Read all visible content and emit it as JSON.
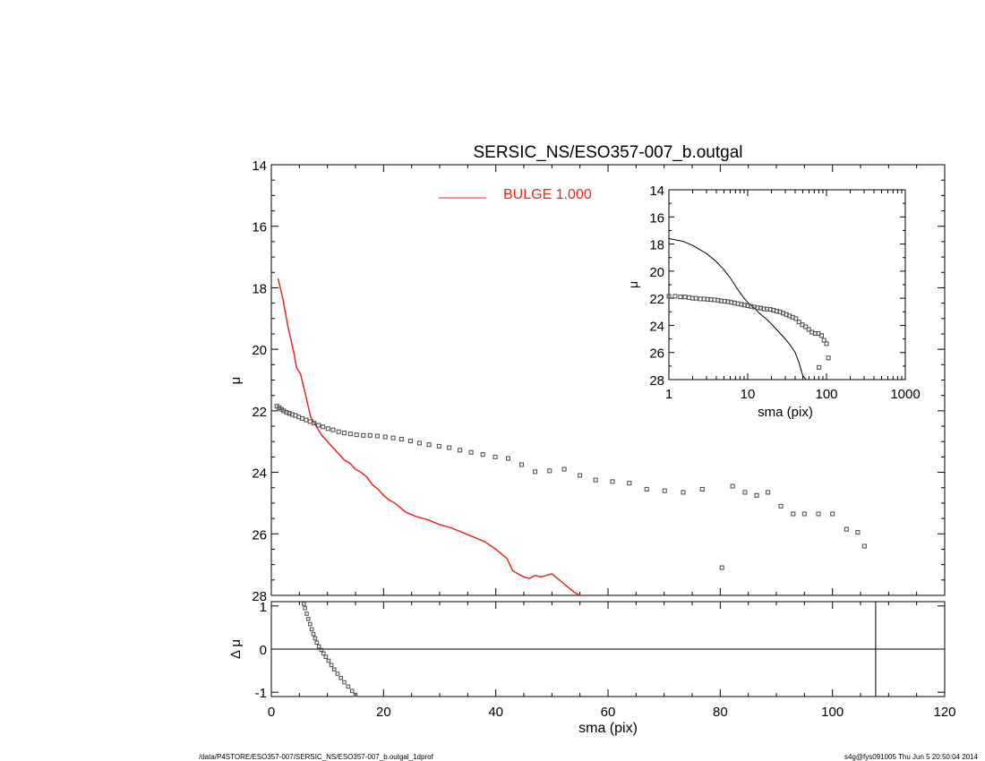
{
  "chart_data": [
    {
      "id": "main",
      "type": "scatter",
      "title": "SERSIC_NS/ESO357-007_b.outgal",
      "xlabel": "",
      "ylabel": "μ",
      "xlim": [
        0,
        120
      ],
      "ylim": [
        28,
        14
      ],
      "y_inverted": true,
      "xticks": [
        0,
        20,
        40,
        60,
        80,
        100,
        120
      ],
      "yticks": [
        14,
        16,
        18,
        20,
        22,
        24,
        26,
        28
      ],
      "legend": {
        "label": "BULGE 1.000",
        "color": "#e8281e",
        "placement": "top-center"
      },
      "series": [
        {
          "role": "observed profile",
          "marker": "square",
          "color": "#555555",
          "x": [
            1.0,
            1.4,
            1.8,
            2.2,
            2.7,
            3.2,
            3.7,
            4.3,
            4.9,
            5.5,
            6.2,
            6.9,
            7.6,
            8.4,
            9.2,
            10.1,
            11.0,
            12.0,
            13.0,
            14.1,
            15.2,
            16.4,
            17.6,
            18.9,
            20.3,
            21.7,
            23.2,
            24.8,
            26.4,
            28.1,
            29.9,
            31.7,
            33.6,
            35.6,
            37.7,
            39.9,
            42.2,
            44.6,
            47.0,
            49.6,
            52.2,
            55.0,
            57.8,
            60.8,
            63.8,
            66.9,
            70.1,
            73.4,
            76.8,
            80.3,
            82.2,
            84.4,
            86.5,
            88.5,
            90.8,
            93.0,
            95.0,
            97.5,
            100.0,
            102.5,
            104.5,
            105.7
          ],
          "y": [
            21.85,
            21.9,
            21.95,
            22.0,
            22.05,
            22.08,
            22.12,
            22.15,
            22.2,
            22.25,
            22.3,
            22.35,
            22.4,
            22.47,
            22.52,
            22.58,
            22.62,
            22.68,
            22.72,
            22.75,
            22.78,
            22.8,
            22.8,
            22.82,
            22.85,
            22.88,
            22.92,
            22.98,
            23.05,
            23.1,
            23.15,
            23.2,
            23.28,
            23.35,
            23.42,
            23.5,
            23.55,
            23.75,
            23.98,
            23.95,
            23.9,
            24.1,
            24.25,
            24.3,
            24.35,
            24.55,
            24.6,
            24.65,
            24.55,
            27.1,
            24.45,
            24.65,
            24.75,
            24.65,
            25.1,
            25.35,
            25.35,
            25.35,
            25.35,
            25.85,
            25.95,
            26.4
          ]
        },
        {
          "role": "bulge model",
          "name": "BULGE 1.000",
          "marker": "line",
          "color": "#e8281e",
          "x": [
            1.2,
            2,
            3,
            4,
            4.5,
            5.2,
            6,
            7,
            8,
            9,
            10,
            11,
            12,
            13,
            14,
            15,
            16,
            17,
            18,
            19,
            20,
            21,
            22,
            24,
            26,
            28,
            30,
            32,
            34,
            36,
            38,
            40,
            42,
            43,
            44,
            45,
            46,
            47,
            48,
            49,
            50,
            51,
            52,
            53,
            54,
            55,
            55.5
          ],
          "y": [
            17.7,
            18.3,
            19.3,
            20.1,
            20.6,
            20.8,
            21.4,
            22.2,
            22.5,
            22.8,
            23.0,
            23.2,
            23.4,
            23.6,
            23.7,
            23.9,
            24.0,
            24.15,
            24.4,
            24.55,
            24.75,
            24.9,
            25.0,
            25.3,
            25.45,
            25.55,
            25.7,
            25.8,
            25.95,
            26.1,
            26.25,
            26.5,
            26.8,
            27.2,
            27.3,
            27.4,
            27.45,
            27.35,
            27.4,
            27.35,
            27.3,
            27.45,
            27.6,
            27.75,
            27.9,
            28.0,
            28.0
          ]
        }
      ]
    },
    {
      "id": "residual",
      "type": "scatter",
      "xlabel": "sma (pix)",
      "ylabel": "Δ μ",
      "xlim": [
        0,
        120
      ],
      "ylim": [
        -1.1,
        1.1
      ],
      "xticks": [
        0,
        20,
        40,
        60,
        80,
        100,
        120
      ],
      "yticks": [
        1,
        0,
        -1
      ],
      "reference_lines": {
        "y": 0,
        "x": 107.7
      },
      "series": [
        {
          "role": "residuals",
          "marker": "square",
          "color": "#555555",
          "x": [
            5.8,
            6.0,
            6.3,
            6.6,
            6.9,
            7.2,
            7.5,
            7.8,
            8.1,
            8.5,
            8.9,
            9.3,
            9.7,
            10.2,
            10.7,
            11.2,
            11.8,
            12.4,
            13.0,
            13.7,
            14.4,
            15.0
          ],
          "y": [
            1.05,
            0.95,
            0.82,
            0.7,
            0.58,
            0.46,
            0.35,
            0.25,
            0.15,
            0.06,
            -0.02,
            -0.1,
            -0.18,
            -0.27,
            -0.37,
            -0.47,
            -0.57,
            -0.67,
            -0.77,
            -0.87,
            -0.97,
            -1.06
          ]
        }
      ]
    },
    {
      "id": "inset",
      "type": "scatter",
      "xlabel": "sma (pix)",
      "ylabel": "μ",
      "x_scale": "log",
      "xlim": [
        1,
        1000
      ],
      "ylim": [
        28,
        14
      ],
      "y_inverted": true,
      "xticks": [
        1,
        10,
        100,
        1000
      ],
      "yticks": [
        14,
        16,
        18,
        20,
        22,
        24,
        26,
        28
      ],
      "series": [
        {
          "role": "observed profile",
          "marker": "square",
          "color": "#555555",
          "x": [
            1.0,
            1.2,
            1.4,
            1.6,
            1.8,
            2.0,
            2.2,
            2.5,
            2.8,
            3.1,
            3.4,
            3.8,
            4.2,
            4.6,
            5.1,
            5.6,
            6.2,
            6.8,
            7.5,
            8.3,
            9.1,
            10.0,
            11.0,
            12.1,
            13.3,
            14.6,
            16.0,
            17.6,
            19.3,
            21.2,
            23.3,
            25.6,
            28.1,
            30.9,
            33.9,
            37.2,
            40.9,
            44.9,
            49.3,
            54.2,
            59.5,
            65.3,
            71.8,
            78.8,
            80.3,
            86.5,
            93.0,
            100.0,
            105.7
          ],
          "y": [
            21.85,
            21.85,
            21.9,
            21.9,
            21.95,
            22.0,
            22.0,
            22.05,
            22.05,
            22.08,
            22.1,
            22.12,
            22.15,
            22.2,
            22.22,
            22.25,
            22.3,
            22.35,
            22.4,
            22.45,
            22.5,
            22.55,
            22.6,
            22.65,
            22.7,
            22.72,
            22.78,
            22.8,
            22.82,
            22.88,
            22.95,
            23.0,
            23.1,
            23.2,
            23.3,
            23.4,
            23.5,
            23.75,
            23.95,
            24.1,
            24.3,
            24.5,
            24.6,
            24.6,
            27.1,
            24.75,
            25.1,
            25.35,
            26.4
          ]
        },
        {
          "role": "bulge model",
          "marker": "line",
          "color": "#000000",
          "x": [
            1.0,
            1.5,
            2,
            3,
            4,
            5,
            6,
            7,
            8,
            9,
            10,
            12,
            14,
            17,
            20,
            25,
            30,
            35,
            40,
            45,
            50,
            55
          ],
          "y": [
            17.6,
            17.8,
            18.1,
            18.7,
            19.3,
            19.9,
            20.5,
            21.1,
            21.6,
            22.0,
            22.3,
            22.7,
            23.1,
            23.5,
            23.9,
            24.5,
            25.0,
            25.5,
            26.0,
            26.8,
            27.7,
            28.0
          ]
        }
      ]
    }
  ],
  "footer": {
    "left": "/data/P4STORE/ESO357-007/SERSIC_NS/ESO357-007_b.outgal_1dprof",
    "right": "s4g@fys091005  Thu Jun  5 20:50:04 2014"
  }
}
